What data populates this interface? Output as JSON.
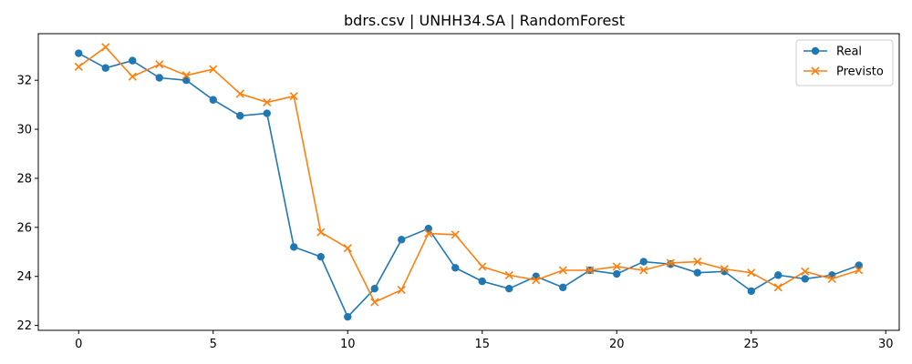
{
  "chart_data": {
    "type": "line",
    "title": "bdrs.csv | UNHH34.SA | RandomForest",
    "xlabel": "",
    "ylabel": "",
    "xlim": [
      -1.5,
      30.5
    ],
    "ylim": [
      21.8,
      33.9
    ],
    "xticks": [
      0,
      5,
      10,
      15,
      20,
      25,
      30
    ],
    "yticks": [
      22,
      24,
      26,
      28,
      30,
      32
    ],
    "grid": false,
    "legend_position": "top-right",
    "x": [
      0,
      1,
      2,
      3,
      4,
      5,
      6,
      7,
      8,
      9,
      10,
      11,
      12,
      13,
      14,
      15,
      16,
      17,
      18,
      19,
      20,
      21,
      22,
      23,
      24,
      25,
      26,
      27,
      28,
      29
    ],
    "series": [
      {
        "name": "Real",
        "color": "#1f77b4",
        "marker": "circle",
        "values": [
          33.1,
          32.5,
          32.8,
          32.1,
          32.0,
          31.2,
          30.55,
          30.65,
          25.2,
          24.8,
          22.35,
          23.5,
          25.5,
          25.95,
          24.35,
          23.8,
          23.5,
          24.0,
          23.55,
          24.25,
          24.1,
          24.6,
          24.5,
          24.15,
          24.2,
          23.4,
          24.05,
          23.9,
          24.05,
          24.45
        ]
      },
      {
        "name": "Previsto",
        "color": "#ff7f0e",
        "marker": "x",
        "values": [
          32.55,
          33.35,
          32.15,
          32.65,
          32.2,
          32.45,
          31.45,
          31.1,
          31.35,
          25.8,
          25.15,
          22.95,
          23.45,
          25.75,
          25.7,
          24.4,
          24.05,
          23.85,
          24.25,
          24.25,
          24.4,
          24.25,
          24.55,
          24.6,
          24.3,
          24.15,
          23.55,
          24.2,
          23.9,
          24.25
        ]
      }
    ]
  }
}
